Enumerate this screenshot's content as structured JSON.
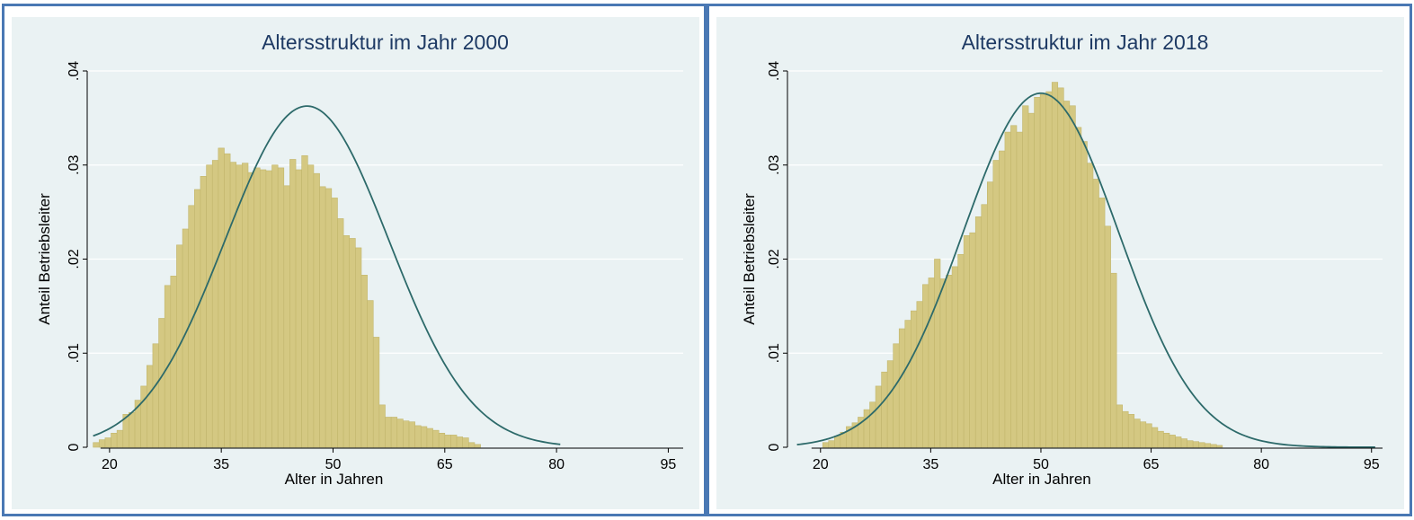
{
  "colors": {
    "border": "#4a78b4",
    "plot_region": "#eaf2f3",
    "gridline": "#ffffff",
    "bar_fill": "#d4c882",
    "bar_stroke": "#c2b66c",
    "curve": "#2d6a6a"
  },
  "chart_data": [
    {
      "type": "bar",
      "title": "Altersstruktur im Jahr 2000",
      "xlabel": "Alter in Jahren",
      "ylabel": "Anteil Betriebsleiter",
      "xlim": [
        17,
        97
      ],
      "ylim": [
        0,
        0.04
      ],
      "xticks": [
        20,
        35,
        50,
        65,
        80,
        95
      ],
      "yticks": [
        0,
        0.01,
        0.02,
        0.03,
        0.04
      ],
      "ytick_labels": [
        "0",
        ".01",
        ".02",
        ".03",
        ".04"
      ],
      "grid": true,
      "bin_start": 17.8,
      "bin_width": 0.8,
      "values": [
        0.0005,
        0.0008,
        0.001,
        0.0015,
        0.0018,
        0.0035,
        0.0037,
        0.005,
        0.0065,
        0.0087,
        0.011,
        0.0137,
        0.0172,
        0.0182,
        0.0215,
        0.0232,
        0.0257,
        0.0274,
        0.0288,
        0.03,
        0.0305,
        0.0318,
        0.0312,
        0.0303,
        0.03,
        0.0302,
        0.0292,
        0.0297,
        0.0295,
        0.0294,
        0.03,
        0.0297,
        0.0278,
        0.0306,
        0.0295,
        0.031,
        0.03,
        0.0291,
        0.0277,
        0.0275,
        0.0265,
        0.0243,
        0.0225,
        0.0222,
        0.0212,
        0.0183,
        0.0156,
        0.0117,
        0.0045,
        0.0032,
        0.0032,
        0.003,
        0.0028,
        0.0027,
        0.0023,
        0.0022,
        0.002,
        0.0018,
        0.0015,
        0.0013,
        0.0013,
        0.0011,
        0.001,
        0.0005,
        0.0003
      ],
      "fit_curve": {
        "type": "normal",
        "mean": 46.5,
        "sd": 11.0
      },
      "fit_x_range": [
        17.8,
        80.5
      ]
    },
    {
      "type": "bar",
      "title": "Altersstruktur im Jahr 2018",
      "xlabel": "Alter in Jahren",
      "ylabel": "Anteil Betriebsleiter",
      "xlim": [
        15.5,
        96.5
      ],
      "ylim": [
        0,
        0.04
      ],
      "xticks": [
        20,
        35,
        50,
        65,
        80,
        95
      ],
      "yticks": [
        0,
        0.01,
        0.02,
        0.03,
        0.04
      ],
      "ytick_labels": [
        "0",
        ".01",
        ".02",
        ".03",
        ".04"
      ],
      "grid": true,
      "bin_start": 20.3,
      "bin_width": 0.8,
      "values": [
        0.0005,
        0.0007,
        0.0012,
        0.0016,
        0.0022,
        0.0026,
        0.0032,
        0.004,
        0.0048,
        0.0065,
        0.008,
        0.0092,
        0.011,
        0.0126,
        0.0135,
        0.0145,
        0.0155,
        0.0173,
        0.018,
        0.02,
        0.0179,
        0.0183,
        0.0192,
        0.0205,
        0.0225,
        0.0228,
        0.0245,
        0.0258,
        0.0282,
        0.0305,
        0.0315,
        0.0335,
        0.0342,
        0.0335,
        0.0363,
        0.0355,
        0.0372,
        0.0375,
        0.0378,
        0.0388,
        0.0382,
        0.0368,
        0.0363,
        0.034,
        0.0325,
        0.0302,
        0.0285,
        0.0265,
        0.0235,
        0.0185,
        0.0045,
        0.0038,
        0.0035,
        0.003,
        0.0027,
        0.0025,
        0.0021,
        0.0017,
        0.0015,
        0.0013,
        0.0011,
        0.0009,
        0.0007,
        0.0006,
        0.0005,
        0.0004,
        0.0003,
        0.0002
      ],
      "fit_curve": {
        "type": "normal",
        "mean": 50.0,
        "sd": 10.6
      },
      "fit_x_range": [
        16.8,
        95.5
      ]
    }
  ]
}
